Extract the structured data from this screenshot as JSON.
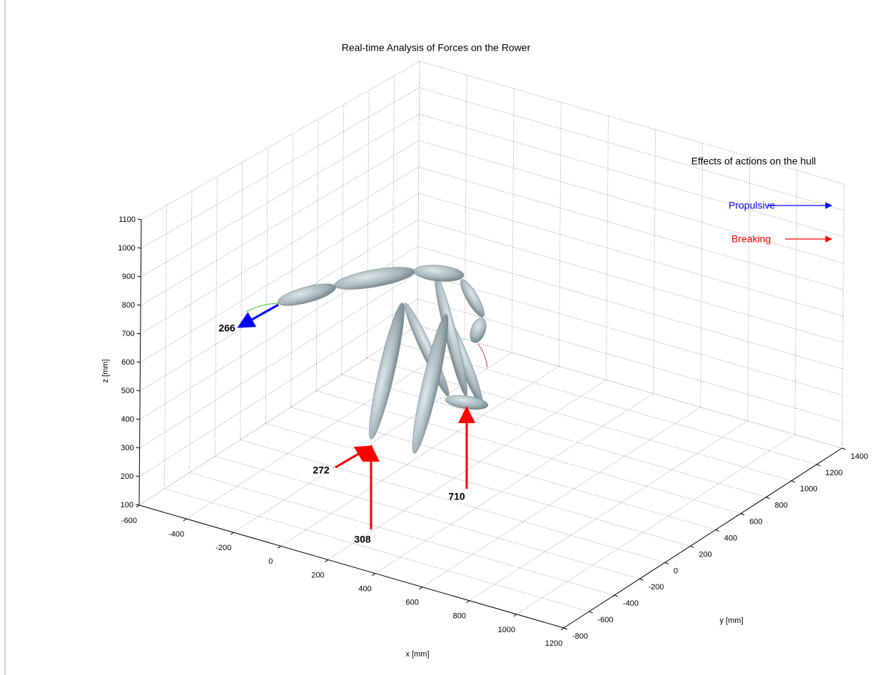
{
  "chart_data": {
    "type": "3d",
    "title": "Real-time Analysis of Forces on the Rower",
    "xlabel": "x [mm]",
    "ylabel": "y [mm]",
    "zlabel": "z [mm]",
    "xlim": [
      -600,
      1200
    ],
    "xticks": [
      -600,
      -400,
      -200,
      0,
      200,
      400,
      600,
      800,
      1000,
      1200
    ],
    "ylim": [
      -800,
      1400
    ],
    "yticks": [
      -800,
      -600,
      -400,
      -200,
      0,
      200,
      400,
      600,
      800,
      1000,
      1200,
      1400
    ],
    "zlim": [
      100,
      1100
    ],
    "zticks": [
      100,
      200,
      300,
      400,
      500,
      600,
      700,
      800,
      900,
      1000,
      1100
    ],
    "grid": true,
    "annotations": [
      266,
      272,
      308,
      710
    ],
    "legend": {
      "title": "Effects of actions on the hull",
      "entries": [
        {
          "name": "Propulsive",
          "color": "#0000ff"
        },
        {
          "name": "Breaking",
          "color": "#ff0000"
        }
      ]
    }
  }
}
